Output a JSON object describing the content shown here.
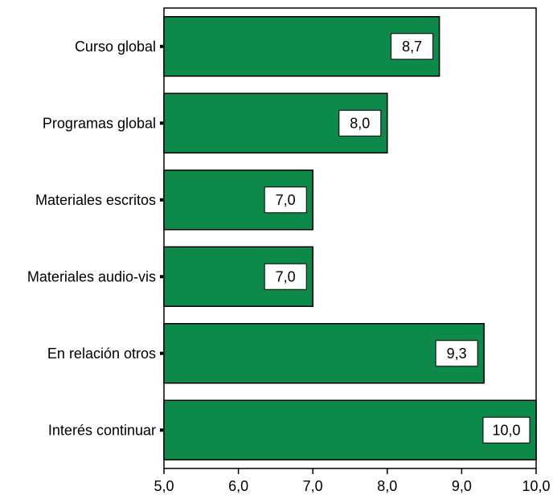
{
  "chart_data": {
    "type": "bar",
    "orientation": "horizontal",
    "categories": [
      "Curso global",
      "Programas global",
      "Materiales escritos",
      "Materiales audio-vis",
      "En relación otros",
      "Interés continuar"
    ],
    "values": [
      8.7,
      8.0,
      7.0,
      7.0,
      9.3,
      10.0
    ],
    "value_labels": [
      "8,7",
      "8,0",
      "7,0",
      "7,0",
      "9,3",
      "10,0"
    ],
    "xlim": [
      5.0,
      10.0
    ],
    "xticks": [
      5.0,
      6.0,
      7.0,
      8.0,
      9.0,
      10.0
    ],
    "xtick_labels": [
      "5,0",
      "6,0",
      "7,0",
      "8,0",
      "9,0",
      "10,0"
    ],
    "title": "",
    "xlabel": "",
    "ylabel": "",
    "grid": false,
    "legend": false,
    "colors": {
      "bar_fill": "#0d8a4a",
      "bar_stroke": "#000000",
      "label_box_fill": "#ffffff",
      "axis": "#000000",
      "background": "#ffffff"
    }
  }
}
